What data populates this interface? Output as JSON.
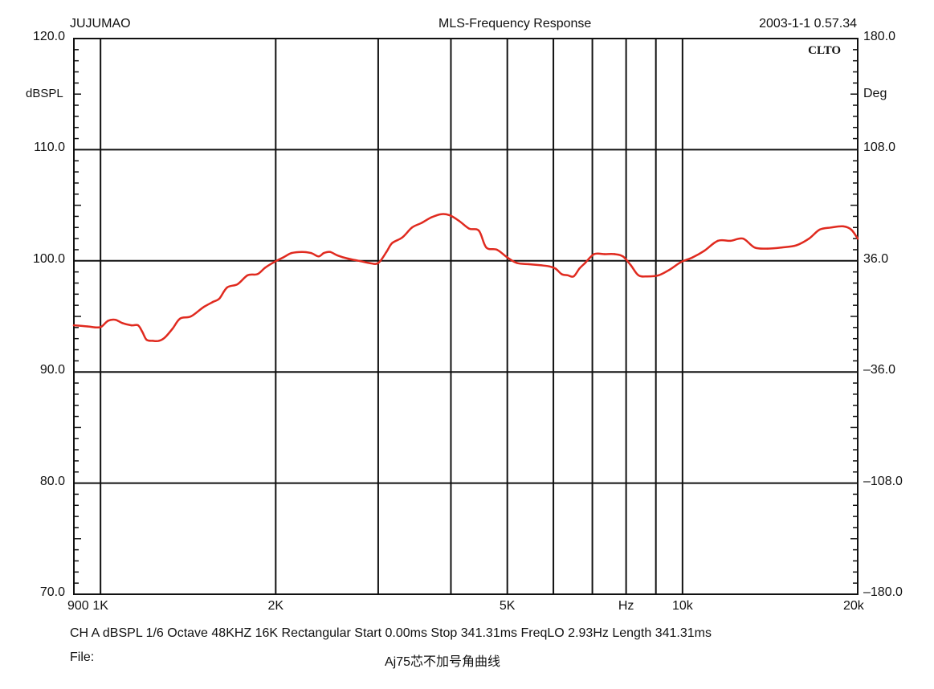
{
  "header": {
    "left": "JUJUMAO",
    "center": "MLS-Frequency Response",
    "right": "2003-1-1 0.57.34"
  },
  "brand_mark": "CLTO",
  "footer": {
    "settings": "CH A dBSPL 1/6 Octave 48KHZ 16K Rectangular Start 0.00ms Stop 341.31ms FreqLO 2.93Hz Length 341.31ms",
    "file_label": "File:",
    "file_name": "Aj75芯不加号角曲线"
  },
  "colors": {
    "curve": "#e02a1f",
    "grid": "#111111"
  },
  "chart_data": {
    "type": "line",
    "title": "MLS-Frequency Response",
    "xlabel": "Hz",
    "x_scale": "log",
    "xlim": [
      900,
      20000
    ],
    "ylabel_left": "dBSPL",
    "ylim_left": [
      70,
      120
    ],
    "ylabel_right": "Deg",
    "ylim_right": [
      -180,
      180
    ],
    "left_ticks": [
      "120.0",
      "110.0",
      "100.0",
      "90.0",
      "80.0",
      "70.0"
    ],
    "left_tick_values": [
      120,
      110,
      100,
      90,
      80,
      70
    ],
    "right_ticks": [
      "180.0",
      "108.0",
      "36.0",
      "-36.0",
      "-108.0",
      "-180.0"
    ],
    "right_tick_values": [
      180,
      108,
      36,
      -36,
      -108,
      -180
    ],
    "x_tick_labels": [
      {
        "label": "900",
        "value": 900
      },
      {
        "label": "1K",
        "value": 1000
      },
      {
        "label": "2K",
        "value": 2000
      },
      {
        "label": "5K",
        "value": 5000
      },
      {
        "label": "Hz",
        "value": 8000
      },
      {
        "label": "10k",
        "value": 10000
      },
      {
        "label": "20k",
        "value": 20000
      }
    ],
    "x_gridlines": [
      1000,
      2000,
      3000,
      4000,
      5000,
      6000,
      7000,
      8000,
      9000,
      10000,
      20000
    ],
    "grid": true,
    "series": [
      {
        "name": "CH A dBSPL",
        "x": [
          900,
          950,
          985,
          1005,
          1030,
          1060,
          1090,
          1130,
          1160,
          1180,
          1200,
          1230,
          1260,
          1290,
          1330,
          1370,
          1430,
          1500,
          1560,
          1600,
          1650,
          1720,
          1790,
          1860,
          1920,
          1990,
          2060,
          2130,
          2220,
          2300,
          2370,
          2420,
          2480,
          2550,
          2660,
          2780,
          2900,
          3000,
          3100,
          3170,
          3300,
          3430,
          3560,
          3700,
          3850,
          3980,
          4130,
          4300,
          4470,
          4600,
          4800,
          5000,
          5200,
          5450,
          5700,
          5900,
          6050,
          6200,
          6350,
          6500,
          6650,
          6800,
          7050,
          7350,
          7650,
          7900,
          8150,
          8400,
          8700,
          9100,
          9500,
          9950,
          10400,
          10900,
          11500,
          12100,
          12700,
          13300,
          14000,
          14800,
          15700,
          16500,
          17200,
          18000,
          18900,
          19500,
          20000
        ],
        "values": [
          94.2,
          94.1,
          94.0,
          94.1,
          94.6,
          94.7,
          94.4,
          94.2,
          94.2,
          93.6,
          92.9,
          92.8,
          92.8,
          93.1,
          93.9,
          94.8,
          95.0,
          95.8,
          96.3,
          96.6,
          97.6,
          97.9,
          98.7,
          98.8,
          99.4,
          99.9,
          100.3,
          100.7,
          100.8,
          100.7,
          100.4,
          100.7,
          100.8,
          100.5,
          100.2,
          100.0,
          99.8,
          99.8,
          100.8,
          101.6,
          102.1,
          103.0,
          103.4,
          103.9,
          104.2,
          104.1,
          103.6,
          102.9,
          102.7,
          101.2,
          101.0,
          100.3,
          99.8,
          99.7,
          99.6,
          99.5,
          99.3,
          98.8,
          98.7,
          98.6,
          99.3,
          99.8,
          100.6,
          100.6,
          100.6,
          100.4,
          99.6,
          98.7,
          98.6,
          98.7,
          99.2,
          99.9,
          100.3,
          100.9,
          101.8,
          101.8,
          102.0,
          101.2,
          101.1,
          101.2,
          101.4,
          102.0,
          102.8,
          103.0,
          103.1,
          102.8,
          102.0
        ]
      }
    ]
  }
}
